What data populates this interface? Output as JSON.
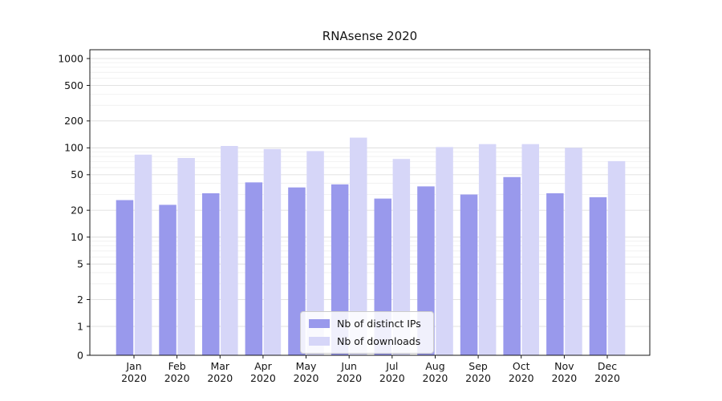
{
  "figure": {
    "title": "RNAsense 2020",
    "background_color": "#ffffff"
  },
  "chart_data": {
    "type": "bar",
    "title": "RNAsense 2020",
    "categories": [
      "Jan 2020",
      "Feb 2020",
      "Mar 2020",
      "Apr 2020",
      "May 2020",
      "Jun 2020",
      "Jul 2020",
      "Aug 2020",
      "Sep 2020",
      "Oct 2020",
      "Nov 2020",
      "Dec 2020"
    ],
    "series": [
      {
        "name": "Nb of distinct IPs",
        "color": "#9999ec",
        "values": [
          26,
          23,
          31,
          41,
          36,
          39,
          27,
          37,
          30,
          47,
          31,
          28
        ]
      },
      {
        "name": "Nb of downloads",
        "color": "#d6d6f8",
        "values": [
          84,
          77,
          105,
          97,
          92,
          130,
          75,
          102,
          110,
          110,
          100,
          71
        ]
      }
    ],
    "xlabel": "",
    "ylabel": "",
    "yscale": "symlog",
    "y_ticks": [
      0,
      1,
      2,
      5,
      10,
      20,
      50,
      100,
      200,
      500,
      1000
    ],
    "ylim": [
      0,
      1250
    ],
    "grid": true,
    "legend_position": "lower center"
  }
}
